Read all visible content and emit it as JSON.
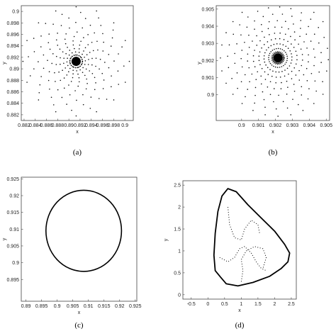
{
  "chart_data": [
    {
      "type": "scatter",
      "caption": "(a)",
      "xlabel": "x",
      "ylabel": "y",
      "xlim": [
        0.8815,
        0.9015
      ],
      "ylim": [
        0.881,
        0.901
      ],
      "xticks": [
        0.882,
        0.884,
        0.886,
        0.888,
        0.89,
        0.892,
        0.894,
        0.896,
        0.898,
        0.9
      ],
      "xtick_labels": [
        "0.882",
        "0.884",
        "0.886",
        "0.888",
        "0.89",
        "0.892",
        "0.894",
        "0.896",
        "0.898",
        "0.9"
      ],
      "yticks": [
        0.882,
        0.884,
        0.886,
        0.888,
        0.89,
        0.892,
        0.894,
        0.896,
        0.898,
        0.9
      ],
      "ytick_labels": [
        "0.882",
        "0.884",
        "0.886",
        "0.888",
        "0.89",
        "0.892",
        "0.894",
        "0.896",
        "0.898",
        "0.9"
      ],
      "spiral": {
        "center": [
          0.8913,
          0.8913
        ],
        "turns": 3.5,
        "arms": 16,
        "points_per_arm": 14,
        "r_max": 0.0095
      },
      "grid": false
    },
    {
      "type": "scatter",
      "caption": "(b)",
      "xlabel": "x",
      "ylabel": "y",
      "xlim": [
        0.8985,
        0.9052
      ],
      "ylim": [
        0.8985,
        0.9052
      ],
      "xticks": [
        0.9,
        0.901,
        0.902,
        0.903,
        0.904,
        0.905
      ],
      "xtick_labels": [
        "0.9",
        "0.901",
        "0.902",
        "0.903",
        "0.904",
        "0.905"
      ],
      "yticks": [
        0.9,
        0.901,
        0.902,
        0.903,
        0.904,
        0.905
      ],
      "ytick_labels": [
        "0.9",
        "0.901",
        "0.902",
        "0.903",
        "0.904",
        "0.905"
      ],
      "spiral": {
        "center": [
          0.90215,
          0.90215
        ],
        "turns": 2.2,
        "arms": 28,
        "points_per_arm": 11,
        "r_max": 0.0034
      },
      "grid": false
    },
    {
      "type": "line",
      "caption": "(c)",
      "xlabel": "x",
      "ylabel": "y",
      "xlim": [
        0.8885,
        0.9255
      ],
      "ylim": [
        0.8885,
        0.9255
      ],
      "xticks": [
        0.89,
        0.895,
        0.9,
        0.905,
        0.91,
        0.915,
        0.92,
        0.925
      ],
      "xtick_labels": [
        "0.89",
        "0.895",
        "0.9",
        "0.905",
        "0.91",
        "0.915",
        "0.92",
        "0.925"
      ],
      "yticks": [
        0.895,
        0.9,
        0.905,
        0.91,
        0.915,
        0.92,
        0.925
      ],
      "ytick_labels": [
        "0.895",
        "0.9",
        "0.905",
        "0.91",
        "0.915",
        "0.92",
        "0.925"
      ],
      "circle": {
        "center": [
          0.9085,
          0.9095
        ],
        "radius": 0.0121
      },
      "grid": false
    },
    {
      "type": "line",
      "caption": "(d)",
      "xlabel": "x",
      "ylabel": "y",
      "xlim": [
        -0.75,
        2.65
      ],
      "ylim": [
        -0.1,
        2.6
      ],
      "xticks": [
        -0.5,
        0,
        0.5,
        1,
        1.5,
        2,
        2.5
      ],
      "xtick_labels": [
        "-0.5",
        "0",
        "0.5",
        "1",
        "1.5",
        "2",
        "2.5"
      ],
      "yticks": [
        0,
        0.5,
        1,
        1.5,
        2,
        2.5
      ],
      "ytick_labels": [
        "0",
        "0.5",
        "1",
        "1.5",
        "2",
        "2.5"
      ],
      "outline": [
        [
          0.55,
          0.25
        ],
        [
          0.9,
          0.2
        ],
        [
          1.35,
          0.28
        ],
        [
          1.85,
          0.42
        ],
        [
          2.2,
          0.6
        ],
        [
          2.4,
          0.75
        ],
        [
          2.45,
          0.95
        ],
        [
          2.3,
          1.15
        ],
        [
          2.0,
          1.45
        ],
        [
          1.6,
          1.75
        ],
        [
          1.2,
          2.05
        ],
        [
          0.85,
          2.35
        ],
        [
          0.6,
          2.42
        ],
        [
          0.42,
          2.25
        ],
        [
          0.3,
          1.9
        ],
        [
          0.22,
          1.4
        ],
        [
          0.18,
          0.9
        ],
        [
          0.22,
          0.55
        ],
        [
          0.38,
          0.4
        ],
        [
          0.55,
          0.25
        ]
      ],
      "inner_dotted": [
        [
          [
            0.6,
            2.0
          ],
          [
            0.65,
            1.6
          ],
          [
            0.8,
            1.3
          ],
          [
            1.0,
            1.25
          ],
          [
            1.1,
            1.5
          ],
          [
            1.3,
            1.7
          ],
          [
            1.5,
            1.6
          ],
          [
            1.55,
            1.4
          ]
        ],
        [
          [
            0.35,
            0.85
          ],
          [
            0.6,
            0.75
          ],
          [
            0.8,
            0.85
          ],
          [
            0.95,
            1.05
          ],
          [
            1.1,
            1.1
          ],
          [
            1.3,
            0.95
          ],
          [
            1.45,
            0.75
          ],
          [
            1.6,
            0.6
          ],
          [
            1.75,
            0.55
          ]
        ],
        [
          [
            1.0,
            0.3
          ],
          [
            1.05,
            0.55
          ],
          [
            1.0,
            0.8
          ],
          [
            1.15,
            1.0
          ],
          [
            1.4,
            1.1
          ],
          [
            1.65,
            1.05
          ],
          [
            1.75,
            0.85
          ],
          [
            1.65,
            0.6
          ]
        ]
      ],
      "grid": false
    }
  ]
}
